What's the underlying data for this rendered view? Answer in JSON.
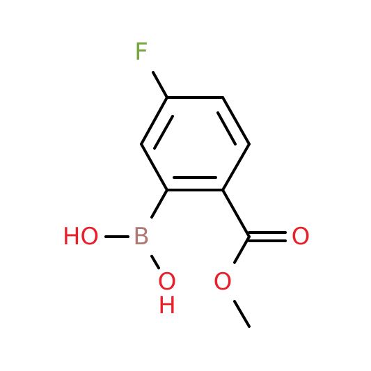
{
  "nodes": [
    {
      "label": "F"
    },
    {
      "label": "B"
    },
    {
      "label": "HO"
    },
    {
      "label": "O"
    },
    {
      "label": "H"
    },
    {
      "label": "O"
    },
    {
      "label": "O"
    }
  ]
}
